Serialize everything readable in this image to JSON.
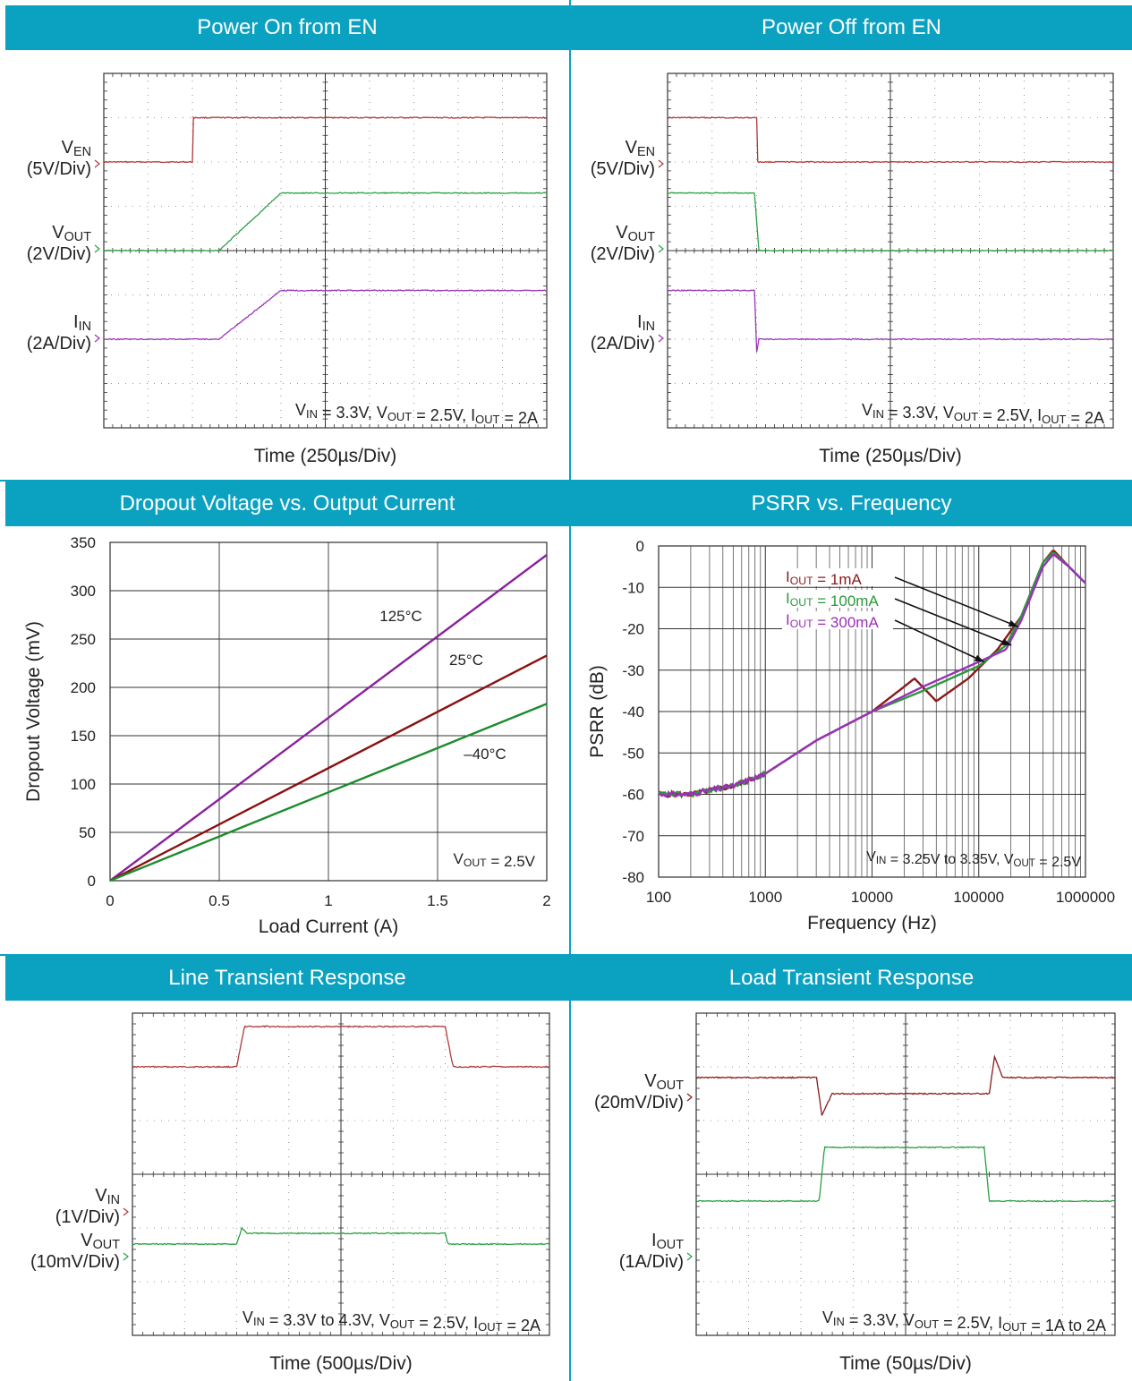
{
  "chart_data": [
    {
      "type": "line",
      "title": "Power On from EN",
      "xlabel": "Time  (250µs/Div)",
      "grid": true,
      "divisions": {
        "x": 10,
        "y": 8
      },
      "annotation": "VIN = 3.3V, VOUT = 2.5V, IOUT = 2A",
      "channel_labels": [
        {
          "name": "VEN",
          "scale": "(5V/Div)"
        },
        {
          "name": "VOUT",
          "scale": "(2V/Div)"
        },
        {
          "name": "IIN",
          "scale": "(2A/Div)"
        }
      ],
      "series": [
        {
          "name": "VEN",
          "color": "#b03a3a",
          "x_div": [
            0,
            2,
            2,
            10
          ],
          "y_div": [
            6,
            6,
            7,
            7
          ]
        },
        {
          "name": "VOUT",
          "color": "#2aa043",
          "x_div": [
            0,
            2.6,
            4,
            10
          ],
          "y_div": [
            4,
            4,
            5.3,
            5.3
          ]
        },
        {
          "name": "IIN",
          "color": "#9a35b8",
          "x_div": [
            0,
            2.6,
            4,
            10
          ],
          "y_div": [
            2,
            2,
            3.1,
            3.1
          ]
        }
      ]
    },
    {
      "type": "line",
      "title": "Power Off from EN",
      "xlabel": "Time  (250µs/Div)",
      "grid": true,
      "divisions": {
        "x": 10,
        "y": 8
      },
      "annotation": "VIN = 3.3V, VOUT = 2.5V, IOUT = 2A",
      "channel_labels": [
        {
          "name": "VEN",
          "scale": "(5V/Div)"
        },
        {
          "name": "VOUT",
          "scale": "(2V/Div)"
        },
        {
          "name": "IIN",
          "scale": "(2A/Div)"
        }
      ],
      "series": [
        {
          "name": "VEN",
          "color": "#b03a3a",
          "x_div": [
            0,
            2,
            2,
            10
          ],
          "y_div": [
            7,
            7,
            6,
            6
          ]
        },
        {
          "name": "VOUT",
          "color": "#2aa043",
          "x_div": [
            0,
            1.95,
            2.05,
            10
          ],
          "y_div": [
            5.3,
            5.3,
            4,
            4
          ]
        },
        {
          "name": "IIN",
          "color": "#9a35b8",
          "x_div": [
            0,
            1.95,
            2,
            2.05,
            10
          ],
          "y_div": [
            3.1,
            3.1,
            1.7,
            2,
            2
          ]
        }
      ]
    },
    {
      "type": "line",
      "title": "Dropout Voltage vs. Output Current",
      "xlabel": "Load Current  (A)",
      "ylabel": "Dropout Voltage (mV)",
      "xlim": [
        0,
        2
      ],
      "ylim": [
        0,
        350
      ],
      "x_ticks": [
        "0",
        "0.5",
        "1",
        "1.5",
        "2"
      ],
      "y_ticks": [
        "0",
        "50",
        "100",
        "150",
        "200",
        "250",
        "300",
        "350"
      ],
      "grid": true,
      "annotation": "VOUT = 2.5V",
      "series": [
        {
          "name": "125°C",
          "color": "#8a1f9e",
          "x": [
            0,
            2
          ],
          "y": [
            0,
            337
          ]
        },
        {
          "name": "25°C",
          "color": "#8b1010",
          "x": [
            0,
            2
          ],
          "y": [
            0,
            233
          ]
        },
        {
          "name": "–40°C",
          "color": "#1e8b2e",
          "x": [
            0,
            2
          ],
          "y": [
            0,
            183
          ]
        }
      ]
    },
    {
      "type": "line",
      "title": "PSRR vs. Frequency",
      "xlabel": "Frequency (Hz)",
      "ylabel": "PSRR (dB)",
      "x_scale": "log",
      "xlim": [
        100,
        1000000
      ],
      "ylim": [
        -80,
        0
      ],
      "x_ticks": [
        "100",
        "1000",
        "10000",
        "100000",
        "1000000"
      ],
      "y_ticks": [
        "0",
        "-10",
        "-20",
        "-30",
        "-40",
        "-50",
        "-60",
        "-70",
        "-80"
      ],
      "grid": true,
      "annotation": "VIN = 3.25V to 3.35V, VOUT = 2.5V",
      "series": [
        {
          "name": "IOUT = 1mA",
          "color": "#8b1a1a",
          "x": [
            100,
            200,
            300,
            500,
            1000,
            3000,
            10000,
            20000,
            25000,
            40000,
            80000,
            150000,
            250000,
            400000,
            500000,
            700000,
            1000000
          ],
          "y": [
            -60,
            -60,
            -59,
            -58,
            -55,
            -47,
            -40,
            -34,
            -32,
            -37.5,
            -32,
            -25,
            -17,
            -4,
            -1,
            -5,
            -9
          ]
        },
        {
          "name": "IOUT = 100mA",
          "color": "#2a9a3a",
          "x": [
            100,
            200,
            300,
            500,
            1000,
            3000,
            10000,
            30000,
            100000,
            180000,
            250000,
            400000,
            500000,
            700000,
            1000000
          ],
          "y": [
            -60,
            -60,
            -59,
            -58,
            -55,
            -47,
            -40,
            -35,
            -29,
            -24,
            -17,
            -4,
            -1.5,
            -5,
            -9
          ]
        },
        {
          "name": "IOUT = 300mA",
          "color": "#9b30b8",
          "x": [
            100,
            200,
            300,
            500,
            1000,
            3000,
            10000,
            30000,
            100000,
            180000,
            250000,
            400000,
            500000,
            700000,
            1000000
          ],
          "y": [
            -60,
            -60,
            -59,
            -58,
            -55,
            -47,
            -40,
            -34,
            -28,
            -25,
            -18,
            -5,
            -2,
            -5,
            -9
          ]
        }
      ]
    },
    {
      "type": "line",
      "title": "Line Transient Response",
      "xlabel": "Time  (500µs/Div)",
      "grid": true,
      "divisions": {
        "x": 8,
        "y": 6
      },
      "annotation": "VIN = 3.3V to 4.3V, VOUT = 2.5V, IOUT = 2A",
      "channel_labels": [
        {
          "name": "VIN",
          "scale": "(1V/Div)"
        },
        {
          "name": "VOUT",
          "scale": "(10mV/Div)"
        }
      ],
      "series": [
        {
          "name": "VIN",
          "color": "#b03a3a",
          "x_div": [
            0,
            2.0,
            2.15,
            6.0,
            6.15,
            8
          ],
          "y_div": [
            5.0,
            5.0,
            5.75,
            5.75,
            5.0,
            5.0
          ]
        },
        {
          "name": "VOUT",
          "color": "#2aa043",
          "x_div": [
            0,
            2.0,
            2.1,
            2.2,
            6.0,
            6.05,
            8
          ],
          "y_div": [
            1.7,
            1.7,
            2.0,
            1.9,
            1.9,
            1.7,
            1.7
          ]
        }
      ]
    },
    {
      "type": "line",
      "title": "Load Transient Response",
      "xlabel": "Time  (50µs/Div)",
      "grid": true,
      "divisions": {
        "x": 8,
        "y": 6
      },
      "annotation": "VIN = 3.3V, VOUT = 2.5V, IOUT = 1A to 2A",
      "channel_labels": [
        {
          "name": "VOUT",
          "scale": "(20mV/Div)"
        },
        {
          "name": "IOUT",
          "scale": "(1A/Div)"
        }
      ],
      "series": [
        {
          "name": "VOUT",
          "color": "#8b1a1a",
          "x_div": [
            0,
            2.3,
            2.4,
            2.6,
            5.6,
            5.7,
            5.85,
            8
          ],
          "y_div": [
            4.8,
            4.8,
            4.1,
            4.5,
            4.5,
            5.2,
            4.8,
            4.8
          ]
        },
        {
          "name": "IOUT",
          "color": "#2aa043",
          "x_div": [
            0,
            2.35,
            2.45,
            5.5,
            5.6,
            8
          ],
          "y_div": [
            2.5,
            2.5,
            3.5,
            3.5,
            2.5,
            2.5
          ]
        }
      ]
    }
  ]
}
